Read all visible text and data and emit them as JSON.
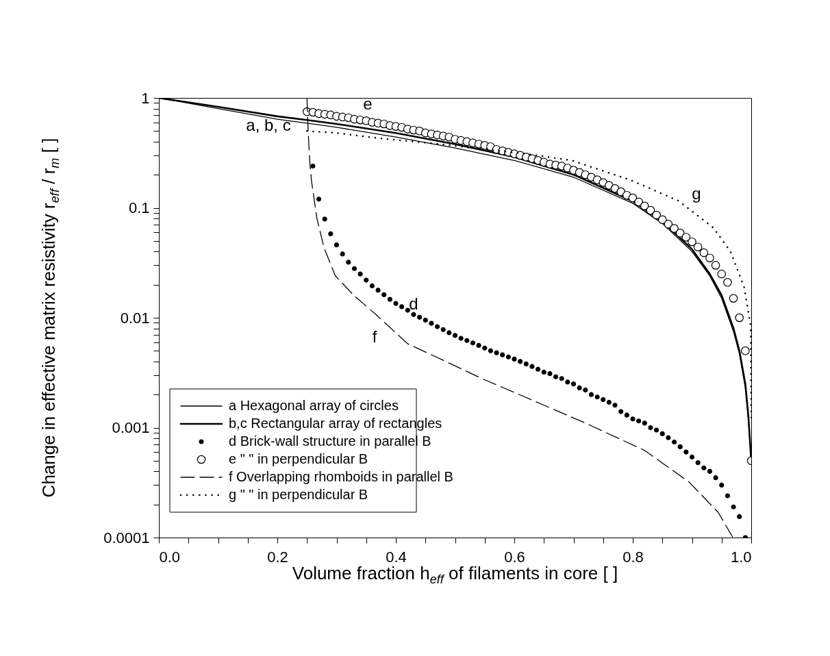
{
  "chart_data": {
    "type": "line",
    "xlabel": "Volume fraction h$_{eff}$ of filaments in core [ ]",
    "ylabel": "Change in effective matrix resistivity r$_{eff}$ / r$_{m}$ [ ]",
    "log": "y",
    "grid": false,
    "legend": "bottom left",
    "xlim": [
      0,
      1
    ],
    "ylim": [
      0.0001,
      1
    ],
    "xticks": [
      {
        "value": 0,
        "label": "0.0"
      },
      {
        "value": 0.05,
        "label": null
      },
      {
        "value": 0.1,
        "label": null
      },
      {
        "value": 0.15,
        "label": null
      },
      {
        "value": 0.2,
        "label": "0.2"
      },
      {
        "value": 0.25,
        "label": null
      },
      {
        "value": 0.3,
        "label": null
      },
      {
        "value": 0.35,
        "label": null
      },
      {
        "value": 0.4,
        "label": "0.4"
      },
      {
        "value": 0.45,
        "label": null
      },
      {
        "value": 0.5,
        "label": null
      },
      {
        "value": 0.55,
        "label": null
      },
      {
        "value": 0.6,
        "label": "0.6"
      },
      {
        "value": 0.65,
        "label": null
      },
      {
        "value": 0.7,
        "label": null
      },
      {
        "value": 0.75,
        "label": null
      },
      {
        "value": 0.8,
        "label": "0.8"
      },
      {
        "value": 0.85,
        "label": null
      },
      {
        "value": 0.9,
        "label": null
      },
      {
        "value": 0.95,
        "label": null
      },
      {
        "value": 1,
        "label": "1.0"
      }
    ],
    "yticks": [
      0.0001,
      {
        "value": 0.0002,
        "label": null
      },
      {
        "value": 0.0003,
        "label": null
      },
      {
        "value": 0.0004,
        "label": null
      },
      {
        "value": 0.0005,
        "label": null
      },
      {
        "value": 0.0006,
        "label": null
      },
      {
        "value": 0.0007,
        "label": null
      },
      {
        "value": 0.0008,
        "label": null
      },
      {
        "value": 0.0009,
        "label": null
      },
      0.001,
      {
        "value": 0.002,
        "label": null
      },
      {
        "value": 0.003,
        "label": null
      },
      {
        "value": 0.004,
        "label": null
      },
      {
        "value": 0.005,
        "label": null
      },
      {
        "value": 0.006,
        "label": null
      },
      {
        "value": 0.007,
        "label": null
      },
      {
        "value": 0.008,
        "label": null
      },
      {
        "value": 0.009,
        "label": null
      },
      0.01,
      {
        "value": 0.02,
        "label": null
      },
      {
        "value": 0.03,
        "label": null
      },
      {
        "value": 0.04,
        "label": null
      },
      {
        "value": 0.05,
        "label": null
      },
      {
        "value": 0.06,
        "label": null
      },
      {
        "value": 0.07,
        "label": null
      },
      {
        "value": 0.08,
        "label": null
      },
      {
        "value": 0.09,
        "label": null
      },
      0.1,
      {
        "value": 0.2,
        "label": null
      },
      {
        "value": 0.3,
        "label": null
      },
      {
        "value": 0.4,
        "label": null
      },
      {
        "value": 0.5,
        "label": null
      },
      {
        "value": 0.6,
        "label": null
      },
      {
        "value": 0.7,
        "label": null
      },
      {
        "value": 0.8,
        "label": null
      },
      {
        "value": 0.9,
        "label": null
      },
      1
    ],
    "series": [
      {
        "name": "a Hexagonal array of circles",
        "line_style": "solid",
        "color": "#000000",
        "x": [
          0,
          0.1,
          0.2,
          0.25,
          0.3,
          0.4,
          0.5,
          0.6,
          0.7,
          0.8,
          0.85,
          0.9,
          0.93,
          0.95,
          0.97,
          0.98,
          0.99,
          0.995,
          1.0
        ],
        "values": [
          1,
          0.8,
          0.64,
          0.59,
          0.54,
          0.44,
          0.35,
          0.27,
          0.19,
          0.11,
          0.072,
          0.04,
          0.024,
          0.015,
          0.0075,
          0.0047,
          0.0023,
          0.0012,
          0.0005
        ]
      },
      {
        "name": "b,c Rectangular array of rectangles",
        "line_style": "solid",
        "color": "#000000",
        "x": [
          0,
          0.1,
          0.2,
          0.25,
          0.3,
          0.4,
          0.5,
          0.6,
          0.7,
          0.8,
          0.85,
          0.9,
          0.93,
          0.95,
          0.97,
          0.98,
          0.99,
          0.995,
          1.0
        ],
        "values": [
          1,
          0.83,
          0.68,
          0.63,
          0.58,
          0.48,
          0.38,
          0.29,
          0.2,
          0.115,
          0.075,
          0.042,
          0.025,
          0.016,
          0.008,
          0.005,
          0.0025,
          0.0013,
          0.0005
        ]
      },
      {
        "name": "d Brick-wall structure in parallel B",
        "type": "scatter",
        "marker": "circle",
        "color": "#000000",
        "x": [
          0.26,
          0.27,
          0.28,
          0.29,
          0.3,
          0.31,
          0.32,
          0.33,
          0.34,
          0.35,
          0.36,
          0.37,
          0.38,
          0.39,
          0.4,
          0.41,
          0.42,
          0.43,
          0.44,
          0.45,
          0.46,
          0.47,
          0.48,
          0.49,
          0.5,
          0.51,
          0.52,
          0.53,
          0.54,
          0.55,
          0.56,
          0.57,
          0.58,
          0.59,
          0.6,
          0.61,
          0.62,
          0.63,
          0.64,
          0.65,
          0.66,
          0.67,
          0.68,
          0.69,
          0.7,
          0.71,
          0.72,
          0.73,
          0.74,
          0.75,
          0.76,
          0.77,
          0.78,
          0.79,
          0.8,
          0.81,
          0.82,
          0.83,
          0.84,
          0.85,
          0.86,
          0.87,
          0.88,
          0.89,
          0.9,
          0.91,
          0.92,
          0.93,
          0.94,
          0.95,
          0.96,
          0.97,
          0.98,
          0.99
        ],
        "values": [
          0.24,
          0.12,
          0.079,
          0.058,
          0.046,
          0.038,
          0.032,
          0.028,
          0.025,
          0.022,
          0.0195,
          0.0178,
          0.0162,
          0.0147,
          0.0135,
          0.0126,
          0.0117,
          0.0107,
          0.0101,
          0.0095,
          0.0089,
          0.0083,
          0.0078,
          0.0073,
          0.0069,
          0.0065,
          0.0062,
          0.0059,
          0.0056,
          0.0053,
          0.005,
          0.0048,
          0.0046,
          0.0044,
          0.0042,
          0.004,
          0.0038,
          0.0036,
          0.0034,
          0.0032,
          0.0031,
          0.0029,
          0.0028,
          0.0026,
          0.0025,
          0.0023,
          0.0022,
          0.002,
          0.0019,
          0.0018,
          0.0017,
          0.0016,
          0.0014,
          0.0013,
          0.0012,
          0.00115,
          0.0011,
          0.001,
          0.00095,
          0.00088,
          0.00081,
          0.00074,
          0.00067,
          0.0006,
          0.00054,
          0.00048,
          0.00043,
          0.0004,
          0.00035,
          0.0003,
          0.00024,
          0.00019,
          0.000155,
          0.0001
        ]
      },
      {
        "name": "e \" \" in perpendicular B",
        "type": "scatter",
        "marker": "circle",
        "color": "#ffffff",
        "x": [
          0.25,
          0.26,
          0.27,
          0.28,
          0.29,
          0.3,
          0.31,
          0.32,
          0.33,
          0.34,
          0.35,
          0.36,
          0.37,
          0.38,
          0.39,
          0.4,
          0.41,
          0.42,
          0.43,
          0.44,
          0.45,
          0.46,
          0.47,
          0.48,
          0.49,
          0.5,
          0.51,
          0.52,
          0.53,
          0.54,
          0.55,
          0.56,
          0.57,
          0.58,
          0.59,
          0.6,
          0.61,
          0.62,
          0.63,
          0.64,
          0.65,
          0.66,
          0.67,
          0.68,
          0.69,
          0.7,
          0.71,
          0.72,
          0.73,
          0.74,
          0.75,
          0.76,
          0.77,
          0.78,
          0.79,
          0.8,
          0.81,
          0.82,
          0.83,
          0.84,
          0.85,
          0.86,
          0.87,
          0.88,
          0.89,
          0.9,
          0.91,
          0.92,
          0.93,
          0.94,
          0.95,
          0.96,
          0.97,
          0.98,
          0.99,
          1.0
        ],
        "values": [
          0.75,
          0.74,
          0.72,
          0.71,
          0.7,
          0.68,
          0.67,
          0.66,
          0.64,
          0.63,
          0.62,
          0.6,
          0.59,
          0.58,
          0.56,
          0.55,
          0.54,
          0.52,
          0.51,
          0.5,
          0.48,
          0.47,
          0.46,
          0.45,
          0.44,
          0.42,
          0.41,
          0.4,
          0.39,
          0.38,
          0.37,
          0.36,
          0.34,
          0.33,
          0.32,
          0.31,
          0.3,
          0.29,
          0.28,
          0.27,
          0.26,
          0.25,
          0.245,
          0.24,
          0.23,
          0.22,
          0.21,
          0.2,
          0.19,
          0.18,
          0.17,
          0.16,
          0.15,
          0.14,
          0.13,
          0.123,
          0.113,
          0.104,
          0.095,
          0.086,
          0.078,
          0.071,
          0.065,
          0.059,
          0.054,
          0.049,
          0.044,
          0.039,
          0.035,
          0.03,
          0.025,
          0.021,
          0.015,
          0.01,
          0.005,
          0.0005
        ]
      },
      {
        "name": "f Overlapping rhomboids in parallel B",
        "line_style": "dashed",
        "color": "#000000",
        "x": [
          0.25,
          0.252,
          0.255,
          0.258,
          0.267,
          0.279,
          0.298,
          0.329,
          0.368,
          0.42,
          0.48,
          0.545,
          0.618,
          0.72,
          0.82,
          0.895,
          0.944,
          0.969
        ],
        "values": [
          1,
          0.5,
          0.25,
          0.17,
          0.079,
          0.043,
          0.024,
          0.016,
          0.0105,
          0.0058,
          0.0041,
          0.0028,
          0.0019,
          0.0011,
          0.00062,
          0.00032,
          0.00017,
          0.0001
        ]
      },
      {
        "name": "g \" \" in perpendicular B",
        "line_style": "dotted",
        "color": "#000000",
        "x": [
          0.25,
          0.3,
          0.37,
          0.475,
          0.55,
          0.62,
          0.697,
          0.795,
          0.877,
          0.936,
          0.965,
          0.988,
          0.999,
          1.0
        ],
        "values": [
          0.5,
          0.48,
          0.43,
          0.38,
          0.34,
          0.31,
          0.27,
          0.18,
          0.116,
          0.066,
          0.04,
          0.019,
          0.0085,
          0.0012
        ]
      }
    ],
    "annotations": [
      "a, b, c",
      "e",
      "d",
      "f",
      "g"
    ]
  }
}
